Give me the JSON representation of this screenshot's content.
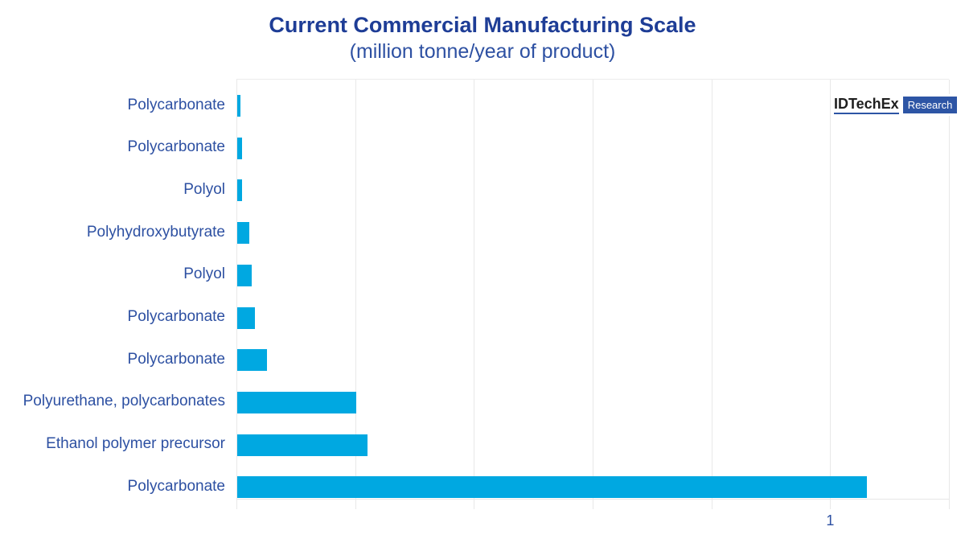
{
  "title": "Current Commercial Manufacturing Scale",
  "subtitle": "(million tonne/year of product)",
  "logo": {
    "brand": "IDTechEx",
    "badge": "Research"
  },
  "colors": {
    "title_text": "#1e3d96",
    "label_text": "#2d50a2",
    "bar": "#00a8e1",
    "gridline": "#e8e8e8",
    "logo_badge_bg": "#2d55a5",
    "logo_brand_text": "#1f1f1f"
  },
  "chart_data": {
    "type": "bar",
    "orientation": "horizontal",
    "title": "Current Commercial Manufacturing Scale",
    "subtitle": "(million tonne/year of product)",
    "unit": "million tonne/year of product",
    "categories": [
      "Polycarbonate",
      "Polycarbonate",
      "Polyol",
      "Polyhydroxybutyrate",
      "Polyol",
      "Polycarbonate",
      "Polycarbonate",
      "Polyurethane, polycarbonates",
      "Ethanol polymer precursor",
      "Polycarbonate"
    ],
    "values": [
      0.005,
      0.008,
      0.008,
      0.02,
      0.025,
      0.03,
      0.05,
      0.2,
      0.22,
      1.06
    ],
    "xlim": [
      0,
      1.2
    ],
    "gridline_step": 0.2,
    "x_ticks": [
      {
        "value": 1,
        "label": "1"
      }
    ],
    "grid": true,
    "legend": false
  }
}
